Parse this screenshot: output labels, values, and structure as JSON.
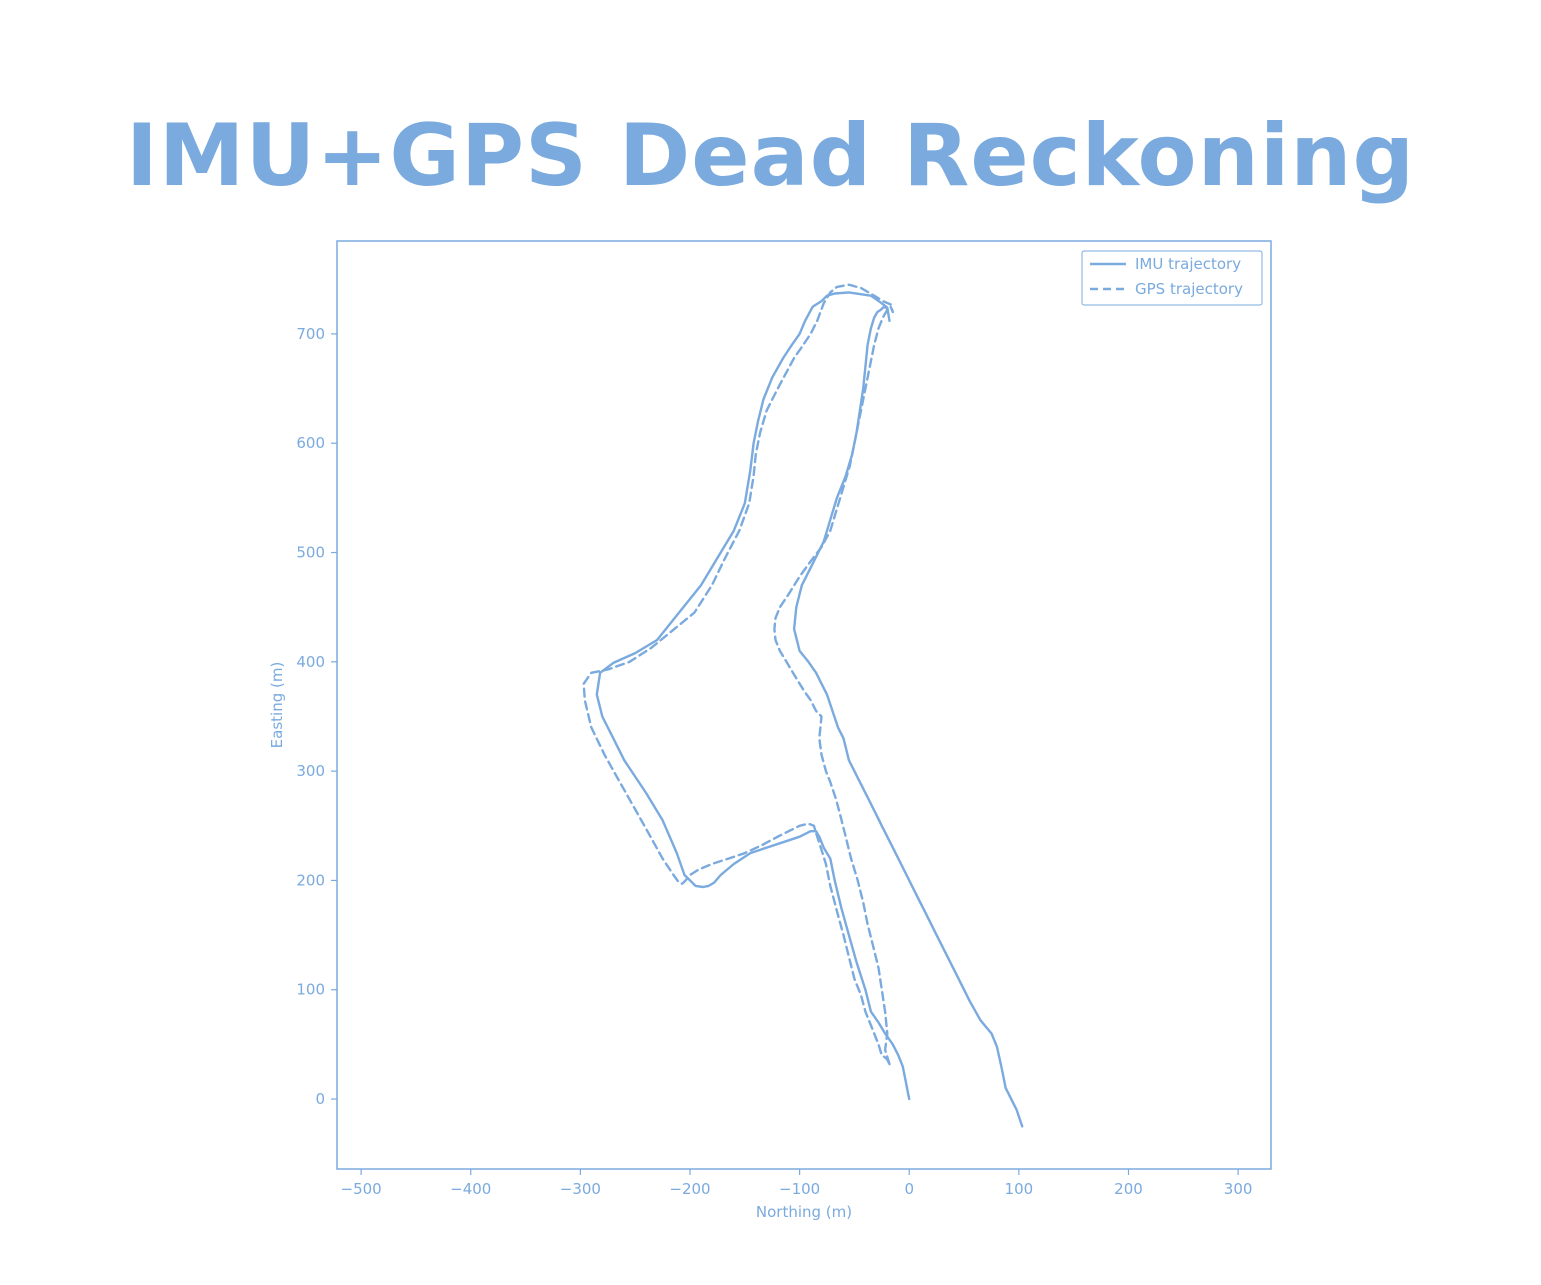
{
  "title": "IMU+GPS Dead Reckoning",
  "accent_color": "#7aaade",
  "chart_data": {
    "type": "line",
    "title": "IMU+GPS Dead Reckoning",
    "xlabel": "Northing (m)",
    "ylabel": "Easting (m)",
    "xlim": [
      -522,
      330
    ],
    "ylim": [
      -64,
      785
    ],
    "x_ticks": [
      -500,
      -400,
      -300,
      -200,
      -100,
      0,
      100,
      200,
      300
    ],
    "x_tick_labels": [
      "−500",
      "−400",
      "−300",
      "−200",
      "−100",
      "0",
      "100",
      "200",
      "300"
    ],
    "y_ticks": [
      0,
      100,
      200,
      300,
      400,
      500,
      600,
      700
    ],
    "y_tick_labels": [
      "0",
      "100",
      "200",
      "300",
      "400",
      "500",
      "600",
      "700"
    ],
    "grid": false,
    "legend_position": "top-right",
    "series": [
      {
        "name": "IMU trajectory",
        "style": "solid",
        "color": "#7aaade",
        "x": [
          103,
          98,
          88,
          84,
          80,
          75,
          65,
          55,
          45,
          35,
          25,
          15,
          5,
          -5,
          -15,
          -25,
          -35,
          -45,
          -55,
          -60,
          -65,
          -70,
          -75,
          -80,
          -85,
          -92,
          -100,
          -105,
          -103,
          -98,
          -88,
          -78,
          -72,
          -66,
          -58,
          -52,
          -48,
          -45,
          -42,
          -40,
          -38,
          -35,
          -32,
          -29,
          -26,
          -24,
          -21,
          -19,
          -18,
          -20,
          -25,
          -35,
          -55,
          -68,
          -75,
          -80,
          -88,
          -95,
          -100,
          -107,
          -115,
          -125,
          -133,
          -138,
          -142,
          -145,
          -150,
          -160,
          -175,
          -190,
          -210,
          -230,
          -250,
          -270,
          -282,
          -285,
          -280,
          -270,
          -260,
          -240,
          -225,
          -212,
          -205,
          -200,
          -195,
          -188,
          -183,
          -178,
          -172,
          -160,
          -145,
          -130,
          -115,
          -100,
          -90,
          -85,
          -82,
          -78,
          -72,
          -68,
          -62,
          -55,
          -48,
          -40,
          -35,
          -28,
          -22,
          -15,
          -10,
          -6,
          -3,
          -1,
          0
        ],
        "y": [
          -25,
          -10,
          10,
          30,
          48,
          60,
          72,
          90,
          110,
          130,
          150,
          170,
          190,
          210,
          230,
          250,
          270,
          290,
          310,
          330,
          340,
          355,
          370,
          380,
          390,
          400,
          410,
          430,
          450,
          470,
          490,
          510,
          530,
          550,
          570,
          590,
          610,
          630,
          650,
          670,
          690,
          705,
          715,
          720,
          722,
          724,
          725,
          718,
          712,
          724,
          728,
          735,
          738,
          737,
          735,
          730,
          725,
          712,
          700,
          690,
          678,
          660,
          640,
          620,
          600,
          575,
          545,
          520,
          495,
          470,
          445,
          420,
          408,
          399,
          390,
          370,
          350,
          330,
          310,
          280,
          255,
          225,
          205,
          200,
          195,
          194,
          195,
          198,
          205,
          215,
          225,
          230,
          235,
          240,
          245,
          245,
          240,
          230,
          220,
          200,
          175,
          150,
          125,
          100,
          80,
          70,
          60,
          50,
          40,
          30,
          15,
          5,
          0
        ]
      },
      {
        "name": "GPS trajectory",
        "style": "dashed",
        "color": "#7aaade",
        "x": [
          -18,
          -22,
          -20,
          -22,
          -25,
          -28,
          -33,
          -38,
          -42,
          -47,
          -53,
          -58,
          -63,
          -67,
          -72,
          -76,
          -80,
          -82,
          -80,
          -85,
          -90,
          -95,
          -100,
          -106,
          -112,
          -118,
          -122,
          -123,
          -122,
          -118,
          -110,
          -100,
          -90,
          -80,
          -72,
          -66,
          -60,
          -54,
          -50,
          -46,
          -42,
          -38,
          -35,
          -32,
          -28,
          -24,
          -20,
          -17,
          -15,
          -17,
          -24,
          -32,
          -44,
          -55,
          -66,
          -72,
          -78,
          -84,
          -90,
          -98,
          -105,
          -112,
          -120,
          -130,
          -136,
          -140,
          -142,
          -146,
          -155,
          -168,
          -180,
          -196,
          -218,
          -235,
          -255,
          -275,
          -290,
          -297,
          -296,
          -290,
          -278,
          -264,
          -250,
          -236,
          -225,
          -215,
          -210,
          -207,
          -204,
          -200,
          -192,
          -180,
          -165,
          -150,
          -135,
          -120,
          -110,
          -100,
          -92,
          -87,
          -84,
          -80,
          -76,
          -72,
          -66,
          -60,
          -55,
          -50,
          -44,
          -40,
          -36,
          -32,
          -28,
          -25,
          -22,
          -20,
          -18
        ],
        "y": [
          32,
          45,
          60,
          80,
          100,
          120,
          140,
          160,
          180,
          200,
          220,
          240,
          260,
          275,
          290,
          300,
          315,
          330,
          350,
          355,
          365,
          372,
          380,
          390,
          400,
          410,
          420,
          430,
          440,
          450,
          462,
          478,
          492,
          505,
          520,
          540,
          560,
          580,
          600,
          620,
          640,
          660,
          675,
          690,
          705,
          715,
          722,
          725,
          720,
          727,
          730,
          735,
          742,
          745,
          743,
          738,
          728,
          712,
          700,
          688,
          678,
          665,
          650,
          630,
          610,
          590,
          570,
          545,
          520,
          495,
          470,
          445,
          427,
          413,
          400,
          393,
          390,
          380,
          365,
          340,
          315,
          290,
          265,
          240,
          220,
          205,
          198,
          197,
          200,
          205,
          210,
          215,
          220,
          225,
          232,
          240,
          245,
          250,
          252,
          250,
          240,
          228,
          215,
          195,
          172,
          150,
          130,
          110,
          95,
          80,
          70,
          60,
          50,
          40,
          38,
          36,
          32
        ]
      }
    ]
  }
}
